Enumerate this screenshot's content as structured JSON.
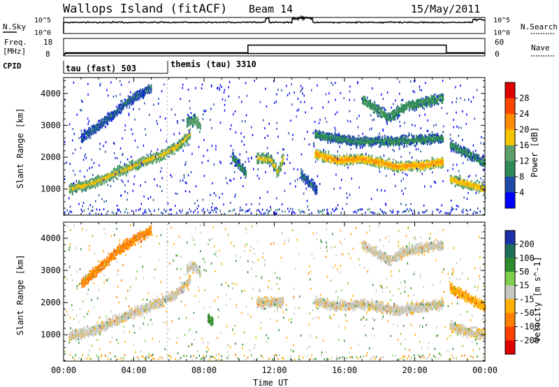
{
  "header": {
    "station": "Wallops Island (fitACF)",
    "beam": "Beam 14",
    "date": "15/May/2011"
  },
  "noise_panel": {
    "left_label": "N.Sky",
    "left_ticks": [
      "10^5",
      "10^0"
    ],
    "right_ticks": [
      "10^5",
      "10^0"
    ],
    "right_label": "N.Search",
    "scale": "log"
  },
  "freq_panel": {
    "left_label_1": "Freq.",
    "left_label_2": "[MHz]",
    "left_ticks": [
      "18",
      "8"
    ],
    "right_ticks": [
      "60",
      "0"
    ],
    "right_label": "Nave",
    "freq_mhz": [
      {
        "t": 0.0,
        "v": 8
      },
      {
        "t": 0.1,
        "v": 9.6
      },
      {
        "t": 24.0,
        "v": 9.6
      }
    ],
    "nave": [
      {
        "t": 0.0,
        "v": 0
      },
      {
        "t": 0.1,
        "v": 12
      },
      {
        "t": 10.5,
        "v": 12
      },
      {
        "t": 10.5,
        "v": 42
      },
      {
        "t": 21.8,
        "v": 42
      },
      {
        "t": 21.8,
        "v": 12
      },
      {
        "t": 24.0,
        "v": 12
      }
    ]
  },
  "cpid": {
    "label": "CPID",
    "segments": [
      {
        "name": "tau (fast) 503",
        "start": 0.0,
        "end": 5.9
      },
      {
        "name": "themis (tau) 3310",
        "start": 5.9,
        "end": 24.0
      }
    ]
  },
  "chart_data": [
    {
      "type": "heatmap",
      "title": "",
      "ylabel": "Slant Range [km]",
      "xlabel": "",
      "xlim": [
        0,
        24
      ],
      "ylim": [
        180,
        4500
      ],
      "y_ticks": [
        "1000",
        "2000",
        "3000",
        "4000"
      ],
      "colorbar": {
        "label": "Power [dB]",
        "tick_labels": [
          "4",
          "8",
          "12",
          "16",
          "20",
          "24",
          "28"
        ],
        "colors": [
          "#0000ff",
          "#1f4aa8",
          "#2e8b57",
          "#5fa06a",
          "#f5c400",
          "#ff8c00",
          "#ff4500",
          "#e00000"
        ]
      },
      "echo_bands": [
        {
          "x": [
            0.3,
            1.5,
            3.0,
            4.5,
            5.5,
            6.5,
            7.2
          ],
          "y": [
            1000,
            1150,
            1500,
            1850,
            2050,
            2350,
            2750
          ],
          "power": 18
        },
        {
          "x": [
            7.0,
            7.5,
            7.8
          ],
          "y": [
            3100,
            3150,
            2900
          ],
          "power": 14
        },
        {
          "x": [
            1.0,
            2.5,
            3.5,
            5.0
          ],
          "y": [
            2600,
            3200,
            3700,
            4200
          ],
          "power": 8
        },
        {
          "x": [
            9.6,
            10.0,
            10.4
          ],
          "y": [
            2000,
            1750,
            1450
          ],
          "power": 10
        },
        {
          "x": [
            11.0,
            11.8,
            12.2,
            12.5
          ],
          "y": [
            2000,
            1900,
            1500,
            2000
          ],
          "power": 18
        },
        {
          "x": [
            13.5,
            14.0,
            14.4
          ],
          "y": [
            1450,
            1200,
            950
          ],
          "power": 8
        },
        {
          "x": [
            14.3,
            15.5,
            17.0,
            19.0,
            20.5,
            21.6
          ],
          "y": [
            2100,
            1900,
            1950,
            1700,
            1750,
            1850
          ],
          "power": 22
        },
        {
          "x": [
            14.3,
            16.5,
            19.0,
            21.6
          ],
          "y": [
            2700,
            2500,
            2500,
            2600
          ],
          "power": 10
        },
        {
          "x": [
            17.0,
            18.5,
            19.5,
            21.6
          ],
          "y": [
            3800,
            3250,
            3600,
            3850
          ],
          "power": 12
        },
        {
          "x": [
            22.0,
            23.0,
            24.0
          ],
          "y": [
            1300,
            1150,
            1000
          ],
          "power": 20
        },
        {
          "x": [
            22.0,
            23.0,
            24.0
          ],
          "y": [
            2400,
            2100,
            1800
          ],
          "power": 10
        }
      ]
    },
    {
      "type": "heatmap",
      "title": "",
      "ylabel": "Slant Range [km]",
      "xlabel": "Time UT",
      "xlim": [
        0,
        24
      ],
      "ylim": [
        180,
        4500
      ],
      "y_ticks": [
        "1000",
        "2000",
        "3000",
        "4000"
      ],
      "x_ticks": [
        "00:00",
        "04:00",
        "08:00",
        "12:00",
        "16:00",
        "20:00",
        "00:00"
      ],
      "colorbar": {
        "label": "Velocity [m s^-1]",
        "tick_labels": [
          "200",
          "100",
          "50",
          "15",
          "-15",
          "-50",
          "-100",
          "-200"
        ],
        "colors": [
          "#1c2fa8",
          "#1f6e5a",
          "#2e8b2e",
          "#7cd04a",
          "#c8c8c0",
          "#ffb000",
          "#ff7f00",
          "#ff4000",
          "#e00000"
        ]
      },
      "echo_bands": [
        {
          "x": [
            0.3,
            1.5,
            3.0,
            4.5,
            5.5,
            6.5,
            7.2
          ],
          "y": [
            950,
            1100,
            1450,
            1800,
            2000,
            2300,
            2700
          ],
          "velocity": -5
        },
        {
          "x": [
            7.0,
            7.5,
            7.8
          ],
          "y": [
            3050,
            3150,
            2900
          ],
          "velocity": -5
        },
        {
          "x": [
            1.0,
            2.5,
            3.5,
            5.0
          ],
          "y": [
            2600,
            3300,
            3800,
            4250
          ],
          "velocity": -60
        },
        {
          "x": [
            8.2,
            8.5
          ],
          "y": [
            1450,
            1400
          ],
          "velocity": 40
        },
        {
          "x": [
            11.0,
            12.5
          ],
          "y": [
            2000,
            2000
          ],
          "velocity": -5
        },
        {
          "x": [
            14.3,
            15.5,
            17.0,
            19.0,
            21.6
          ],
          "y": [
            2050,
            1900,
            1950,
            1750,
            1950
          ],
          "velocity": -5
        },
        {
          "x": [
            17.0,
            18.5,
            19.5,
            21.6
          ],
          "y": [
            3800,
            3300,
            3600,
            3800
          ],
          "velocity": -5
        },
        {
          "x": [
            22.0,
            23.0,
            24.0
          ],
          "y": [
            1250,
            1100,
            1000
          ],
          "velocity": -10
        },
        {
          "x": [
            22.0,
            23.0,
            24.0
          ],
          "y": [
            2450,
            2150,
            1850
          ],
          "velocity": -40
        }
      ]
    }
  ]
}
